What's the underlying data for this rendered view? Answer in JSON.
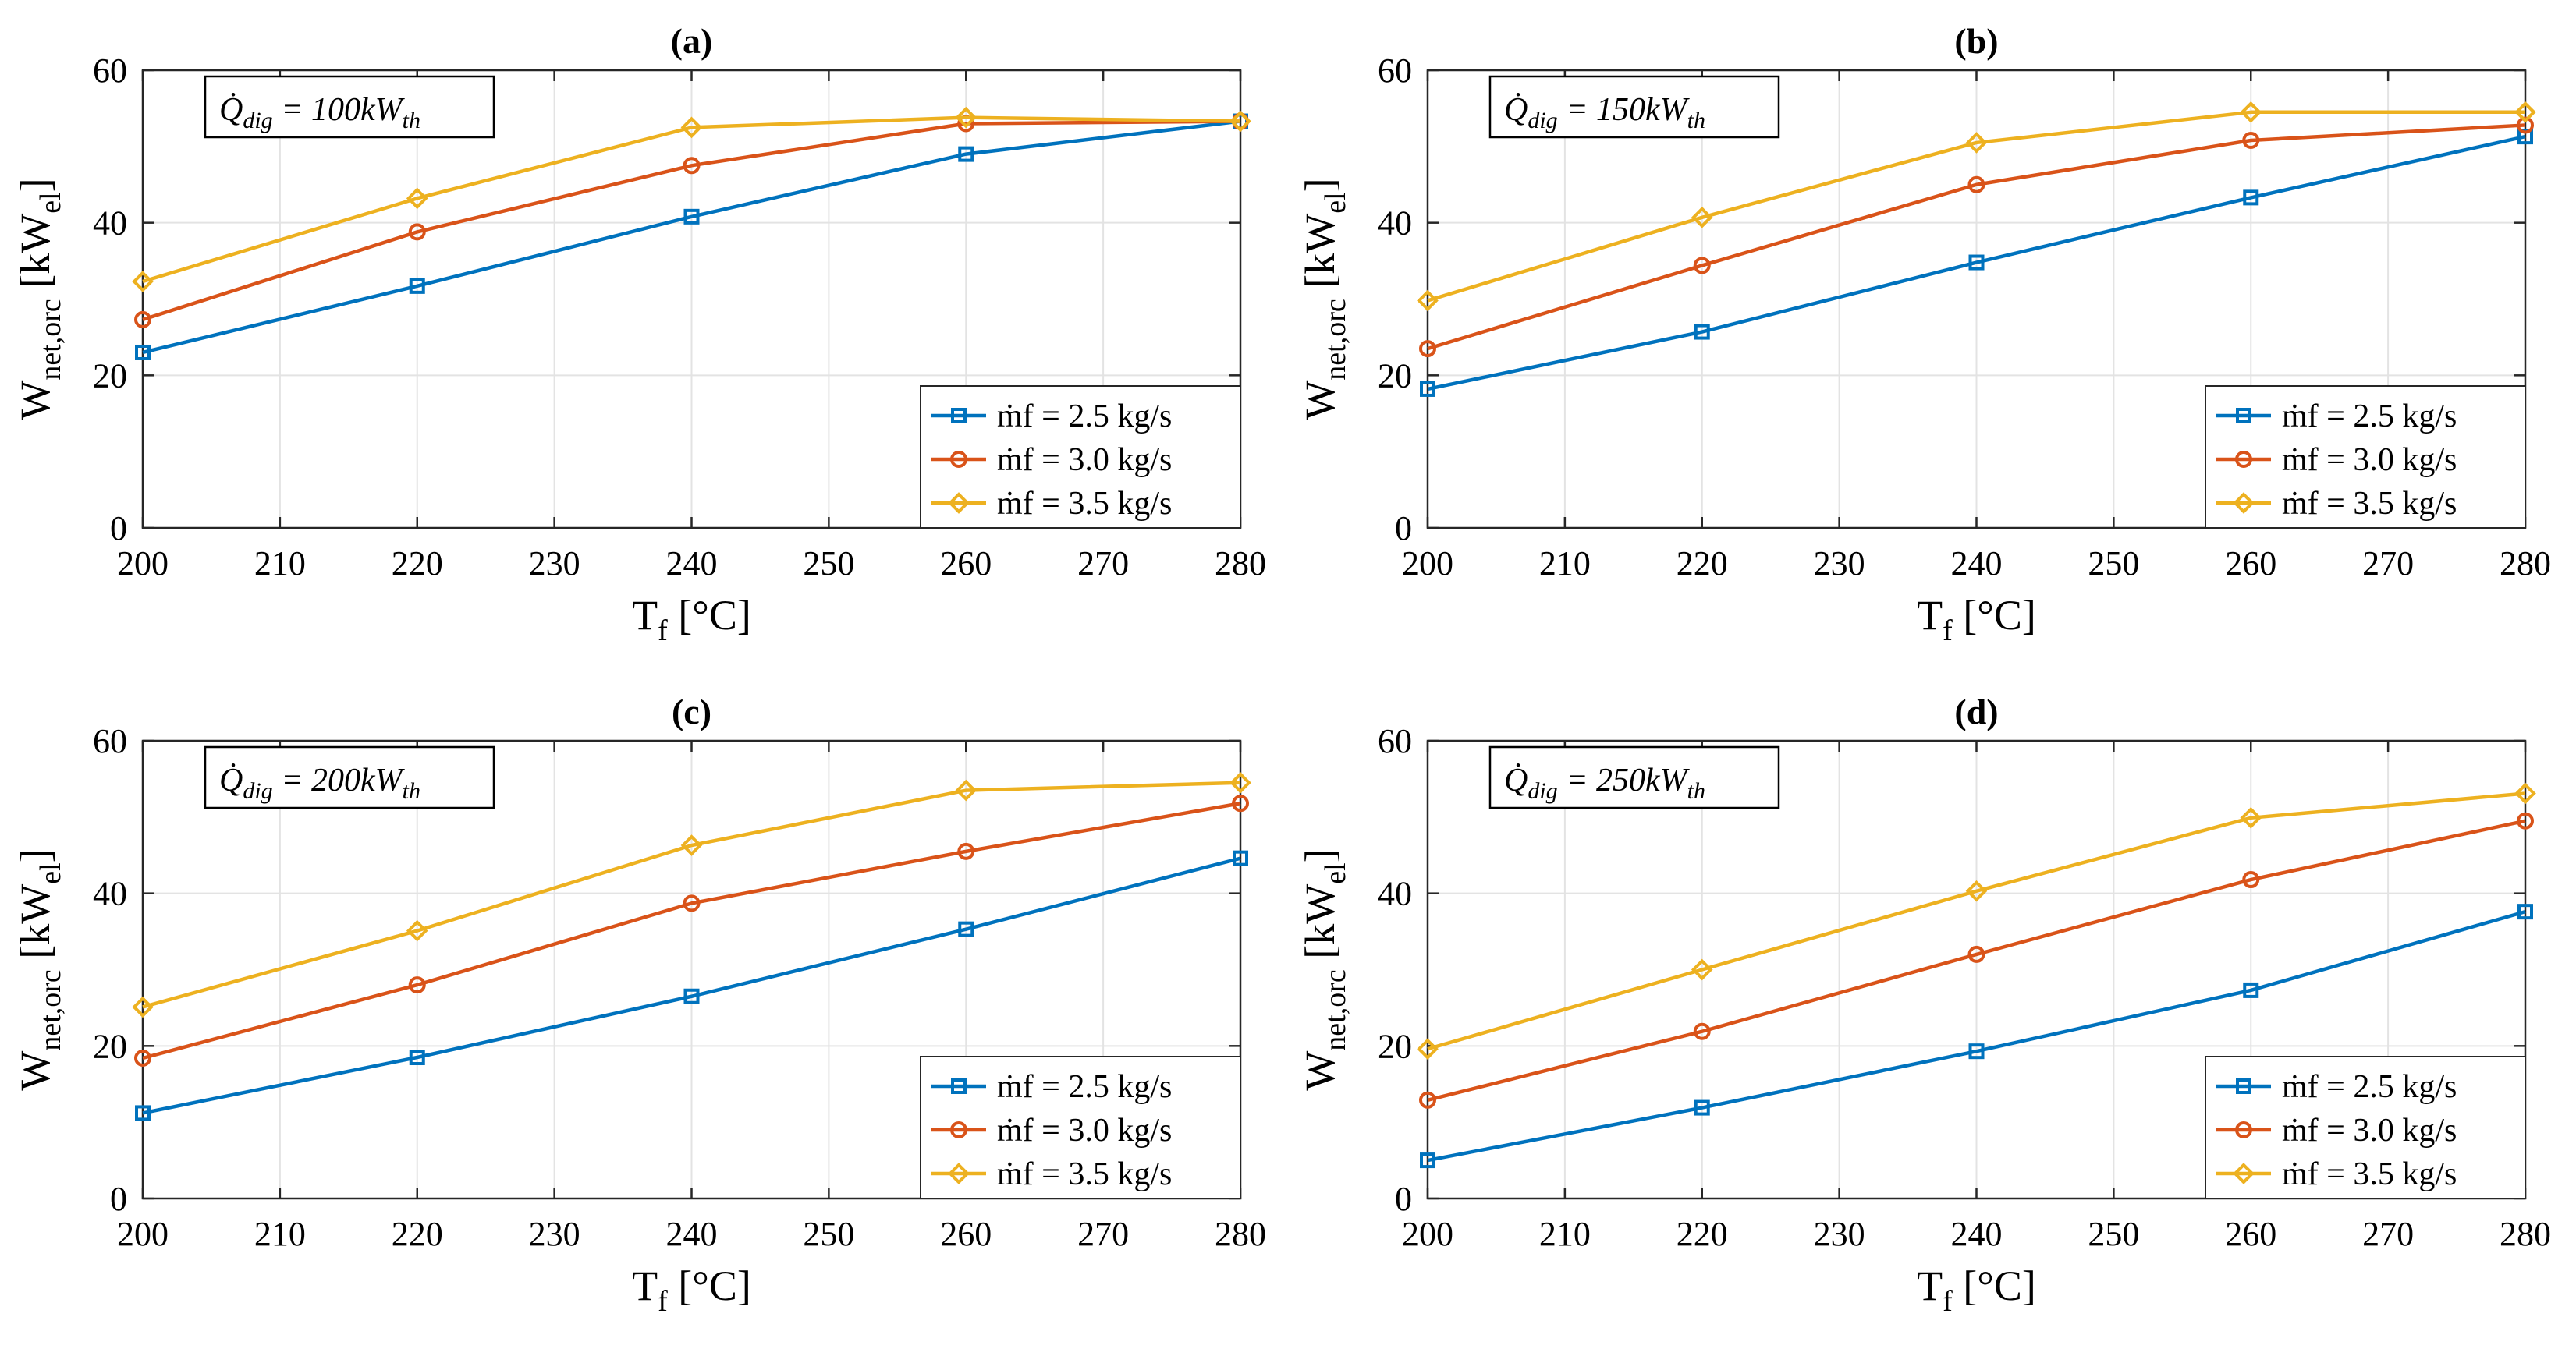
{
  "chart_data": [
    {
      "type": "line",
      "title": "(a)",
      "annotation": {
        "prefix": "Q̇",
        "sub": "dig",
        "middle": " = 100kW",
        "sub2": "th"
      },
      "xlabel": {
        "main": "T",
        "sub": "f",
        "rest": " [°C]"
      },
      "ylabel": {
        "main": "W",
        "sub": "net,orc",
        "rest": "  [kW",
        "sub2": "el",
        "end": "]"
      },
      "xlim": [
        200,
        280
      ],
      "ylim": [
        0,
        60
      ],
      "xticks": [
        200,
        210,
        220,
        230,
        240,
        250,
        260,
        270,
        280
      ],
      "yticks": [
        0,
        20,
        40,
        60
      ],
      "x": [
        200,
        220,
        240,
        260,
        280
      ],
      "series": [
        {
          "name": "ṁf = 2.5 kg/s",
          "color": "#0072BD",
          "marker": "square",
          "values": [
            23.0,
            31.7,
            40.8,
            49.0,
            53.3
          ]
        },
        {
          "name": "ṁf = 3.0 kg/s",
          "color": "#D95319",
          "marker": "circle",
          "values": [
            27.3,
            38.8,
            47.5,
            53.0,
            53.3
          ]
        },
        {
          "name": "ṁf = 3.5 kg/s",
          "color": "#EDB120",
          "marker": "diamond",
          "values": [
            32.3,
            43.2,
            52.5,
            53.8,
            53.3
          ]
        }
      ]
    },
    {
      "type": "line",
      "title": "(b)",
      "annotation": {
        "prefix": "Q̇",
        "sub": "dig",
        "middle": " = 150kW",
        "sub2": "th"
      },
      "xlabel": {
        "main": "T",
        "sub": "f",
        "rest": " [°C]"
      },
      "ylabel": {
        "main": "W",
        "sub": "net,orc",
        "rest": "  [kW",
        "sub2": "el",
        "end": "]"
      },
      "xlim": [
        200,
        280
      ],
      "ylim": [
        0,
        60
      ],
      "xticks": [
        200,
        210,
        220,
        230,
        240,
        250,
        260,
        270,
        280
      ],
      "yticks": [
        0,
        20,
        40,
        60
      ],
      "x": [
        200,
        220,
        240,
        260,
        280
      ],
      "series": [
        {
          "name": "ṁf = 2.5 kg/s",
          "color": "#0072BD",
          "marker": "square",
          "values": [
            18.2,
            25.7,
            34.8,
            43.3,
            51.3
          ]
        },
        {
          "name": "ṁf = 3.0 kg/s",
          "color": "#D95319",
          "marker": "circle",
          "values": [
            23.5,
            34.4,
            45.0,
            50.8,
            52.8
          ]
        },
        {
          "name": "ṁf = 3.5 kg/s",
          "color": "#EDB120",
          "marker": "diamond",
          "values": [
            29.8,
            40.7,
            50.5,
            54.5,
            54.5
          ]
        }
      ]
    },
    {
      "type": "line",
      "title": "(c)",
      "annotation": {
        "prefix": "Q̇",
        "sub": "dig",
        "middle": " = 200kW",
        "sub2": "th"
      },
      "xlabel": {
        "main": "T",
        "sub": "f",
        "rest": " [°C]"
      },
      "ylabel": {
        "main": "W",
        "sub": "net,orc",
        "rest": "  [kW",
        "sub2": "el",
        "end": "]"
      },
      "xlim": [
        200,
        280
      ],
      "ylim": [
        0,
        60
      ],
      "xticks": [
        200,
        210,
        220,
        230,
        240,
        250,
        260,
        270,
        280
      ],
      "yticks": [
        0,
        20,
        40,
        60
      ],
      "x": [
        200,
        220,
        240,
        260,
        280
      ],
      "series": [
        {
          "name": "ṁf = 2.5 kg/s",
          "color": "#0072BD",
          "marker": "square",
          "values": [
            11.2,
            18.5,
            26.5,
            35.3,
            44.6
          ]
        },
        {
          "name": "ṁf = 3.0 kg/s",
          "color": "#D95319",
          "marker": "circle",
          "values": [
            18.4,
            28.0,
            38.7,
            45.5,
            51.8
          ]
        },
        {
          "name": "ṁf = 3.5 kg/s",
          "color": "#EDB120",
          "marker": "diamond",
          "values": [
            25.1,
            35.1,
            46.3,
            53.5,
            54.5
          ]
        }
      ]
    },
    {
      "type": "line",
      "title": "(d)",
      "annotation": {
        "prefix": "Q̇",
        "sub": "dig",
        "middle": " = 250kW",
        "sub2": "th"
      },
      "xlabel": {
        "main": "T",
        "sub": "f",
        "rest": " [°C]"
      },
      "ylabel": {
        "main": "W",
        "sub": "net,orc",
        "rest": "  [kW",
        "sub2": "el",
        "end": "]"
      },
      "xlim": [
        200,
        280
      ],
      "ylim": [
        0,
        60
      ],
      "xticks": [
        200,
        210,
        220,
        230,
        240,
        250,
        260,
        270,
        280
      ],
      "yticks": [
        0,
        20,
        40,
        60
      ],
      "x": [
        200,
        220,
        240,
        260,
        280
      ],
      "series": [
        {
          "name": "ṁf = 2.5 kg/s",
          "color": "#0072BD",
          "marker": "square",
          "values": [
            5.0,
            11.9,
            19.3,
            27.3,
            37.6
          ]
        },
        {
          "name": "ṁf = 3.0 kg/s",
          "color": "#D95319",
          "marker": "circle",
          "values": [
            12.9,
            21.9,
            32.0,
            41.8,
            49.5
          ]
        },
        {
          "name": "ṁf = 3.5 kg/s",
          "color": "#EDB120",
          "marker": "diamond",
          "values": [
            19.6,
            30.0,
            40.3,
            49.9,
            53.1
          ]
        }
      ]
    }
  ]
}
